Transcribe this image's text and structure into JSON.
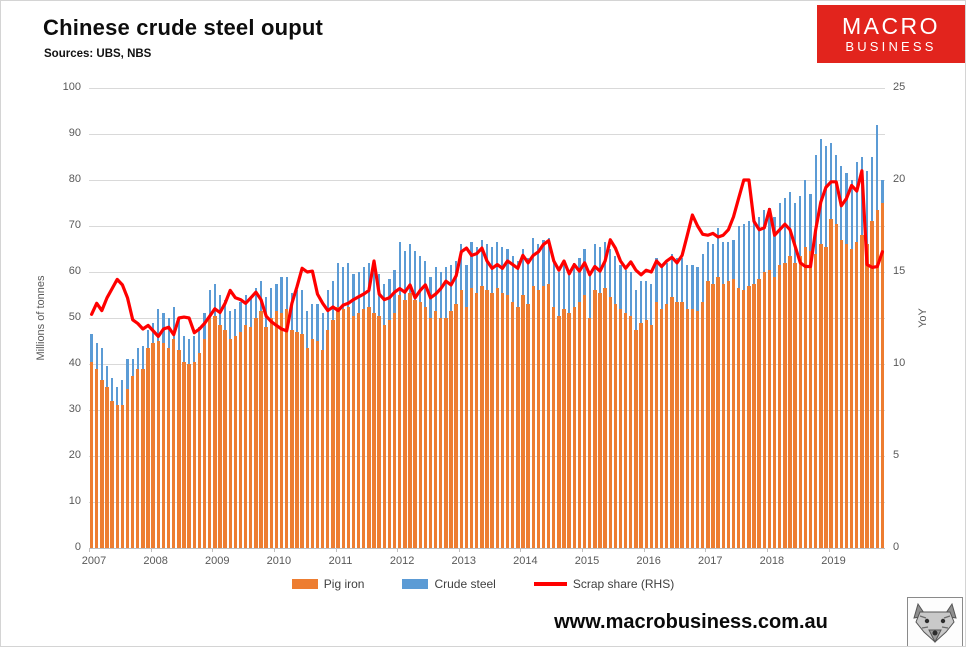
{
  "page": {
    "title": "Chinese crude steel ouput",
    "subtitle": "Sources: UBS, NBS",
    "footer_url": "www.macrobusiness.com.au"
  },
  "logo": {
    "line1": "MACRO",
    "line2": "BUSINESS",
    "bg_color": "#e2241d",
    "text_color": "#ffffff"
  },
  "legend": {
    "items": [
      "Pig iron",
      "Crude steel",
      "Scrap share (RHS)"
    ]
  },
  "chart_data": {
    "type": "combo",
    "x_unit": "month",
    "x_start": "2007-01",
    "x_end": "2019-11",
    "x_tick_labels": [
      "2007",
      "2008",
      "2009",
      "2010",
      "2011",
      "2012",
      "2013",
      "2014",
      "2015",
      "2016",
      "2017",
      "2018",
      "2019"
    ],
    "y_left": {
      "label": "Millions of tonnes",
      "min": 0,
      "max": 100,
      "ticks": [
        0,
        10,
        20,
        30,
        40,
        50,
        60,
        70,
        80,
        90,
        100
      ]
    },
    "y_right": {
      "label": "YoY",
      "min": 0,
      "max": 25,
      "ticks": [
        0,
        5,
        10,
        15,
        20,
        25
      ]
    },
    "grid": true,
    "legend_position": "bottom",
    "colors": {
      "pig_iron": "#ED7D31",
      "crude_steel": "#5B9BD5",
      "scrap_share": "#FF0000",
      "gridline": "#d9d9d9"
    },
    "series": [
      {
        "name": "Pig iron",
        "type": "bar",
        "axis": "left",
        "color": "#ED7D31",
        "values": [
          40.5,
          39,
          36.5,
          35,
          32,
          31,
          31,
          34.5,
          37.5,
          39,
          39,
          43.5,
          44.5,
          45,
          44.5,
          43.5,
          45.5,
          43,
          40.5,
          40,
          40.5,
          42.5,
          45.5,
          50,
          50.5,
          48.5,
          47.5,
          45.5,
          46,
          47,
          48.5,
          48,
          50,
          51.5,
          48,
          50,
          51.5,
          51,
          52,
          47.5,
          47,
          46.5,
          43.5,
          45.5,
          45,
          43,
          47.5,
          49.5,
          52.5,
          52,
          52.5,
          50.5,
          51,
          52,
          52.5,
          51,
          50.5,
          48.5,
          49.5,
          51,
          55,
          54,
          55.5,
          54,
          53.5,
          52.5,
          50,
          51.5,
          50,
          50,
          51.5,
          53,
          56,
          52.5,
          56.5,
          55.5,
          57,
          56,
          55.5,
          56.5,
          55.5,
          55,
          53.5,
          52.5,
          55,
          53,
          57,
          56,
          57,
          57.5,
          52.5,
          50.5,
          52,
          51,
          52.5,
          53.5,
          55,
          50,
          56,
          55.5,
          56.5,
          54.5,
          53,
          52,
          51,
          50.5,
          47.5,
          49,
          49.5,
          48.5,
          53.5,
          52,
          53,
          54.5,
          53.5,
          53.5,
          52,
          52,
          51.5,
          53.5,
          58,
          57.5,
          59,
          57.5,
          58,
          58.5,
          56.5,
          56,
          57,
          57.5,
          58.5,
          60,
          60.5,
          59,
          61.5,
          62,
          63.5,
          62,
          63.5,
          65.5,
          64.5,
          64,
          66,
          65.5,
          71.5,
          70.5,
          67,
          66,
          65,
          66.5,
          68,
          66,
          71,
          73.5,
          75
        ]
      },
      {
        "name": "Crude steel",
        "type": "bar",
        "axis": "left",
        "color": "#5B9BD5",
        "values": [
          46.5,
          44.5,
          43.5,
          39.5,
          37,
          35,
          36.5,
          41,
          41,
          43.5,
          44,
          47.5,
          49,
          52,
          51,
          50,
          52.5,
          49.5,
          46,
          45.5,
          46,
          48,
          51,
          56,
          57.5,
          55,
          54,
          51.5,
          52,
          53.5,
          55,
          54.5,
          56.5,
          58,
          54.5,
          56.5,
          57.5,
          59,
          59,
          55.5,
          56,
          56,
          51.5,
          53,
          53,
          51,
          56,
          58,
          62,
          61,
          62,
          59.5,
          60,
          61,
          62,
          60.5,
          59.5,
          57.5,
          58.5,
          60.5,
          66.5,
          64.5,
          66,
          64.5,
          63.5,
          62.5,
          59,
          61,
          60,
          61,
          61.5,
          62.5,
          66,
          61.5,
          66.5,
          65.5,
          67,
          66,
          65.5,
          66.5,
          65.5,
          65,
          63.5,
          62.5,
          65,
          63,
          67.5,
          66,
          67,
          67.5,
          62,
          60,
          61.5,
          60.5,
          62,
          63,
          65,
          59.5,
          66,
          65.5,
          66.5,
          65,
          63.5,
          61.5,
          60.5,
          60,
          56,
          58,
          58,
          57.5,
          63,
          61,
          62,
          64,
          63,
          63,
          61.5,
          61.5,
          61,
          64,
          66.5,
          66,
          69.5,
          66.5,
          66.5,
          67,
          70,
          70.5,
          71,
          71.5,
          72,
          73.5,
          74,
          72,
          75,
          76,
          77.5,
          75,
          76.5,
          80,
          77,
          85.5,
          89,
          87.5,
          88,
          85.5,
          83,
          81.5,
          80,
          84,
          85,
          82,
          85,
          92,
          80
        ]
      },
      {
        "name": "Scrap share (RHS)",
        "type": "line",
        "axis": "right",
        "color": "#FF0000",
        "values": [
          12.7,
          13.3,
          12.9,
          13.6,
          14.1,
          14.6,
          14.3,
          13.6,
          12.4,
          12.2,
          11.9,
          12.1,
          11.8,
          11.5,
          11.9,
          12,
          11.6,
          12.5,
          12.55,
          12.5,
          11.7,
          11.9,
          12.2,
          12.6,
          13,
          12.8,
          13.3,
          14,
          13.6,
          13.5,
          13.3,
          13.6,
          13.9,
          13.5,
          12.6,
          12.3,
          12.1,
          11.9,
          11.8,
          13.3,
          14.2,
          15.2,
          15,
          15.05,
          13.8,
          13.3,
          12.9,
          13.1,
          12.9,
          13.2,
          13.3,
          13.5,
          13.65,
          13.8,
          14,
          15.6,
          13.8,
          13.5,
          13.6,
          13.9,
          14.1,
          13.9,
          14.3,
          13.6,
          14,
          14.3,
          13.6,
          13.8,
          14.1,
          14.5,
          14.3,
          14.8,
          16.1,
          16.3,
          15.9,
          16,
          16.3,
          15.6,
          15.2,
          15.4,
          15.2,
          15.6,
          15.4,
          15.2,
          15.9,
          15.5,
          15.9,
          16.1,
          16.5,
          16.7,
          15.6,
          15.1,
          15.6,
          14.9,
          15.4,
          15.05,
          15.5,
          14.85,
          15.3,
          15.05,
          15.6,
          16.75,
          16.3,
          15.6,
          15.2,
          15.55,
          15.1,
          14.85,
          15.1,
          15,
          15.6,
          15.3,
          15.6,
          15.8,
          15.5,
          15.9,
          17,
          18.1,
          17.5,
          17.05,
          17,
          17.1,
          16.9,
          17,
          17.3,
          18,
          19,
          20,
          20,
          17.75,
          17.3,
          17.4,
          18.4,
          17,
          17.3,
          17.6,
          17.3,
          16.4,
          15.5,
          15.3,
          15.3,
          17.3,
          18.8,
          19.6,
          19.9,
          19.9,
          18.6,
          19,
          19.7,
          19.4,
          20.5,
          15.4,
          15.25,
          15.3,
          16.1
        ]
      }
    ]
  }
}
